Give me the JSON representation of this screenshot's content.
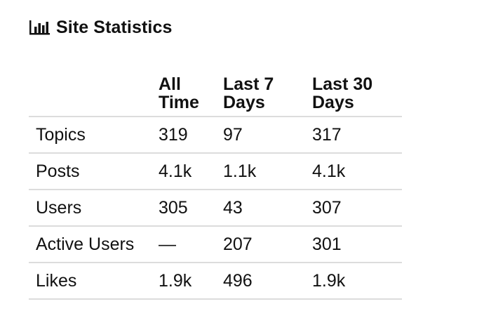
{
  "header": {
    "icon": "bar-chart-icon",
    "title": "Site Statistics"
  },
  "table": {
    "columns": [
      "",
      "All Time",
      "Last 7 Days",
      "Last 30 Days"
    ],
    "header_lines": [
      [],
      [
        "All",
        "Time"
      ],
      [
        "Last 7",
        "Days"
      ],
      [
        "Last 30",
        "Days"
      ]
    ],
    "rows": [
      {
        "label": "Topics",
        "all_time": "319",
        "last_7": "97",
        "last_30": "317"
      },
      {
        "label": "Posts",
        "all_time": "4.1k",
        "last_7": "1.1k",
        "last_30": "4.1k"
      },
      {
        "label": "Users",
        "all_time": "305",
        "last_7": "43",
        "last_30": "307"
      },
      {
        "label": "Active Users",
        "all_time": "—",
        "last_7": "207",
        "last_30": "301"
      },
      {
        "label": "Likes",
        "all_time": "1.9k",
        "last_7": "496",
        "last_30": "1.9k"
      }
    ]
  },
  "colors": {
    "text": "#111111",
    "divider": "#dcdcdc",
    "background": "#ffffff"
  }
}
